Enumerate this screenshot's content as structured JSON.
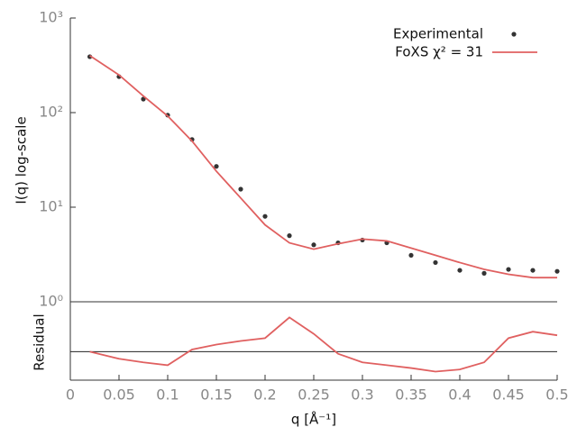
{
  "chart_data": [
    {
      "type": "line",
      "ylabel": "I(q) log-scale",
      "log_y": true,
      "xlim": [
        0,
        0.5
      ],
      "ylim": [
        1,
        1000
      ],
      "yticks": [
        {
          "value": 1,
          "label": "10⁰"
        },
        {
          "value": 10,
          "label": "10¹"
        },
        {
          "value": 100,
          "label": "10²"
        },
        {
          "value": 1000,
          "label": "10³"
        }
      ],
      "legend": "top right",
      "x": [
        0.02,
        0.05,
        0.075,
        0.1,
        0.125,
        0.15,
        0.175,
        0.2,
        0.225,
        0.25,
        0.275,
        0.3,
        0.325,
        0.35,
        0.375,
        0.4,
        0.425,
        0.45,
        0.475,
        0.5
      ],
      "series": [
        {
          "name": "Experimental",
          "color": "#333333",
          "mark": "points",
          "values": [
            390,
            240,
            139,
            94,
            52,
            27,
            15.5,
            8,
            5,
            4,
            4.2,
            4.5,
            4.2,
            3.1,
            2.6,
            2.15,
            2,
            2.2,
            2.15,
            2.1
          ]
        },
        {
          "name": "FoXS χ² = 31",
          "color": "#e06060",
          "mark": "line",
          "values": [
            400,
            250,
            150,
            92,
            50,
            24,
            12.5,
            6.5,
            4.2,
            3.6,
            4.1,
            4.6,
            4.4,
            3.7,
            3.1,
            2.6,
            2.2,
            1.95,
            1.8,
            1.8
          ]
        }
      ]
    },
    {
      "type": "line",
      "ylabel": "Residual",
      "xlabel": "q [Å⁻¹]",
      "xlim": [
        0,
        0.5
      ],
      "xticks": [
        0,
        0.05,
        0.1,
        0.15,
        0.2,
        0.25,
        0.3,
        0.35,
        0.4,
        0.45,
        0.5
      ],
      "ylim": [
        -0.4,
        0.7
      ],
      "hline": 0,
      "x": [
        0.02,
        0.05,
        0.075,
        0.1,
        0.125,
        0.15,
        0.175,
        0.2,
        0.225,
        0.25,
        0.275,
        0.3,
        0.325,
        0.35,
        0.375,
        0.4,
        0.425,
        0.45,
        0.475,
        0.5
      ],
      "color": "#e06060",
      "values": [
        0,
        -0.1,
        -0.15,
        -0.19,
        0.03,
        0.1,
        0.15,
        0.19,
        0.48,
        0.25,
        -0.03,
        -0.15,
        -0.19,
        -0.23,
        -0.28,
        -0.25,
        -0.15,
        0.19,
        0.28,
        0.23
      ]
    }
  ]
}
